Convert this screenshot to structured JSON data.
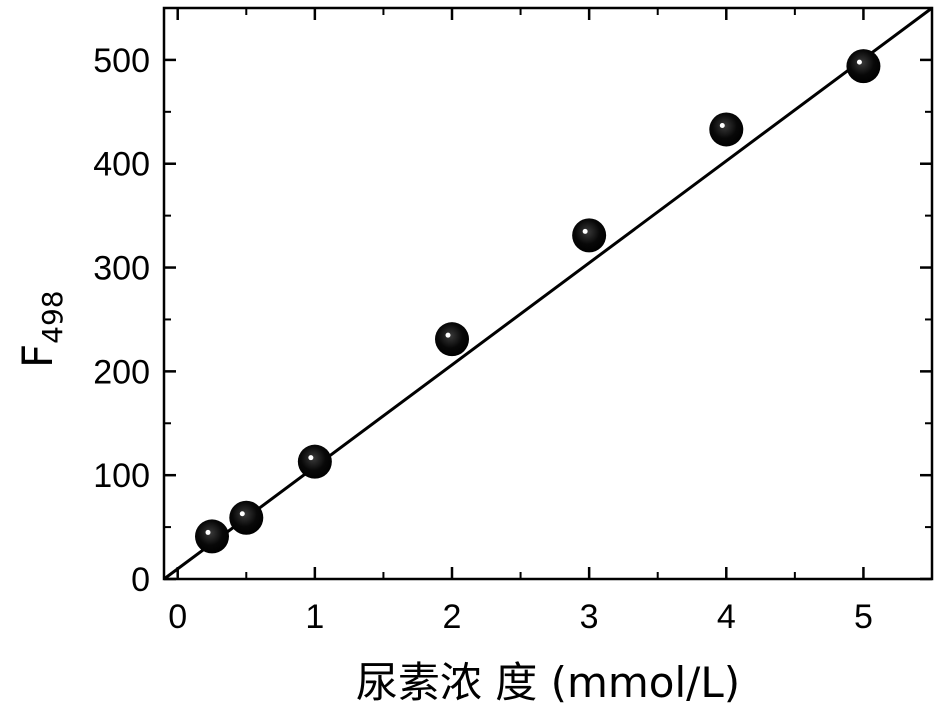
{
  "chart_data": {
    "type": "scatter",
    "title": "",
    "xlabel": "尿素浓 度 (mmol/L)",
    "ylabel": {
      "main": "F",
      "sub": "498"
    },
    "xlim": [
      -0.1,
      5.5
    ],
    "ylim": [
      0,
      550
    ],
    "xticks": [
      0,
      1,
      2,
      3,
      4,
      5
    ],
    "xtick_labels": [
      "0",
      "1",
      "2",
      "3",
      "4",
      "5"
    ],
    "yticks": [
      0,
      100,
      200,
      300,
      400,
      500
    ],
    "ytick_labels": [
      "0",
      "100",
      "200",
      "300",
      "400",
      "500"
    ],
    "grid": false,
    "legend": "none",
    "series": [
      {
        "x": [
          0.25,
          0.5,
          1,
          2,
          3,
          4,
          5
        ],
        "y": [
          41,
          59,
          113,
          231,
          331,
          433,
          494
        ]
      }
    ],
    "fit_line": {
      "x": [
        -0.1,
        5.5
      ],
      "y": [
        0,
        550
      ]
    }
  }
}
